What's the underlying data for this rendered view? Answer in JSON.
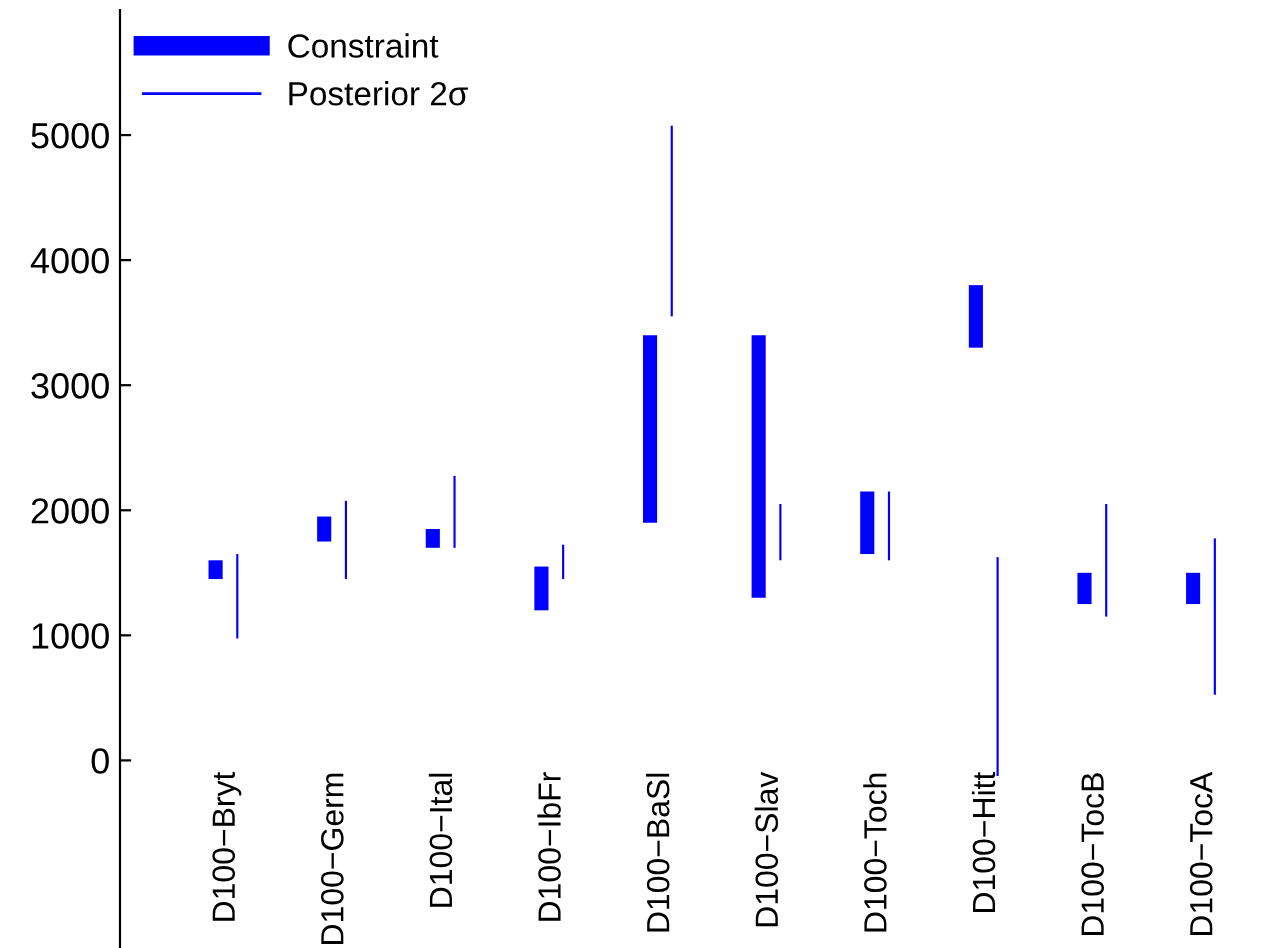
{
  "chart_data": {
    "type": "bar",
    "categories": [
      "D100−Bryt",
      "D100−Germ",
      "D100−Ital",
      "D100−IbFr",
      "D100−BaSl",
      "D100−Slav",
      "D100−Toch",
      "D100−Hitt",
      "D100−TocB",
      "D100−TocA"
    ],
    "series": [
      {
        "name": "Constraint",
        "color": "#0000ff",
        "base": [
          1450,
          1750,
          1700,
          1200,
          1900,
          1300,
          1650,
          3300,
          1250,
          1250
        ],
        "values": [
          150,
          200,
          150,
          350,
          1500,
          2100,
          500,
          500,
          250,
          250
        ]
      },
      {
        "name": "Posterior 2σ",
        "color": "#0000ff",
        "base": [
          975,
          1450,
          1700,
          1450,
          3550,
          1600,
          1600,
          -125,
          1150,
          525
        ],
        "values": [
          675,
          625,
          575,
          275,
          1525,
          450,
          550,
          1750,
          900,
          1250
        ]
      }
    ],
    "ylim": [
      -1500,
      6000
    ],
    "yticks": [
      0,
      1000,
      2000,
      3000,
      4000,
      5000
    ],
    "grid": false,
    "legend": "top left"
  }
}
